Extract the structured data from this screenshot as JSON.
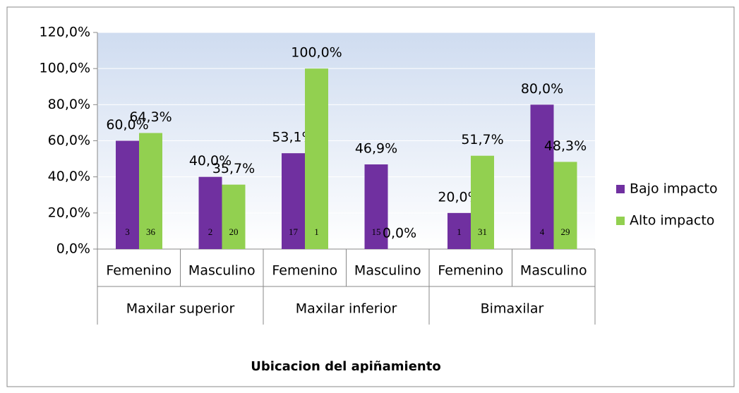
{
  "chart_data": {
    "type": "bar",
    "x_title": "Ubicacion del apiñamiento",
    "categories": [
      "Femenino",
      "Masculino",
      "Femenino",
      "Masculino",
      "Femenino",
      "Masculino"
    ],
    "groups": [
      "Maxilar superior",
      "Maxilar inferior",
      "Bimaxilar"
    ],
    "series": [
      {
        "name": "Bajo impacto",
        "color": "#7030a0",
        "values": [
          60,
          40,
          53.1,
          46.9,
          20,
          80
        ],
        "value_labels": [
          "60,0%",
          "40,0%",
          "53,1%",
          "46,9%",
          "20,0%",
          "80,0%"
        ],
        "counts": [
          3,
          2,
          17,
          15,
          1,
          4
        ]
      },
      {
        "name": "Alto impacto",
        "color": "#92d050",
        "values": [
          64.3,
          35.7,
          100,
          0,
          51.7,
          48.3
        ],
        "value_labels": [
          "64,3%",
          "35,7%",
          "100,0%",
          "0,0%",
          "51,7%",
          "48,3%"
        ],
        "counts": [
          36,
          20,
          1,
          null,
          31,
          29
        ]
      }
    ],
    "ylim": [
      0,
      120
    ],
    "yticks": [
      {
        "value": 0,
        "label": "0,0%"
      },
      {
        "value": 20,
        "label": "20,0%"
      },
      {
        "value": 40,
        "label": "40,0%"
      },
      {
        "value": 60,
        "label": "60,0%"
      },
      {
        "value": 80,
        "label": "80,0%"
      },
      {
        "value": 100,
        "label": "100,0%"
      },
      {
        "value": 120,
        "label": "120,0%"
      }
    ],
    "legend": "right"
  }
}
